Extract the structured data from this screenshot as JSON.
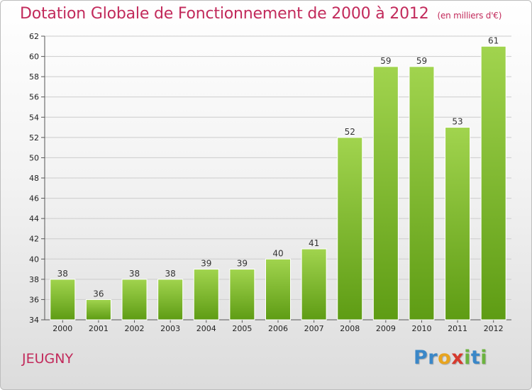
{
  "header": {
    "title": "Dotation Globale de Fonctionnement de 2000 à 2012",
    "subtitle": "(en milliers d'€)"
  },
  "footer": {
    "commune": "JEUGNY",
    "brand_letters": [
      "P",
      "r",
      "o",
      "x",
      "i",
      "t",
      "i"
    ]
  },
  "colors": {
    "title": "#c22a5b",
    "bar_top": "#a1d44e",
    "bar_bottom": "#5e9c14",
    "grid": "#cccccc",
    "brand": [
      "#3a87c8",
      "#3a87c8",
      "#e8a41f",
      "#d63a2e",
      "#6cb33f",
      "#3a87c8",
      "#6cb33f"
    ]
  },
  "chart_data": {
    "type": "bar",
    "title": "Dotation Globale de Fonctionnement de 2000 à 2012",
    "subtitle": "(en milliers d'€)",
    "xlabel": "",
    "ylabel": "",
    "categories": [
      "2000",
      "2001",
      "2002",
      "2003",
      "2004",
      "2005",
      "2006",
      "2007",
      "2008",
      "2009",
      "2010",
      "2011",
      "2012"
    ],
    "values": [
      38,
      36,
      38,
      38,
      39,
      39,
      40,
      41,
      52,
      59,
      59,
      53,
      61
    ],
    "ylim": [
      34,
      62
    ],
    "yticks": [
      34,
      36,
      38,
      40,
      42,
      44,
      46,
      48,
      50,
      52,
      54,
      56,
      58,
      60,
      62
    ],
    "grid": true,
    "data_labels": true
  }
}
